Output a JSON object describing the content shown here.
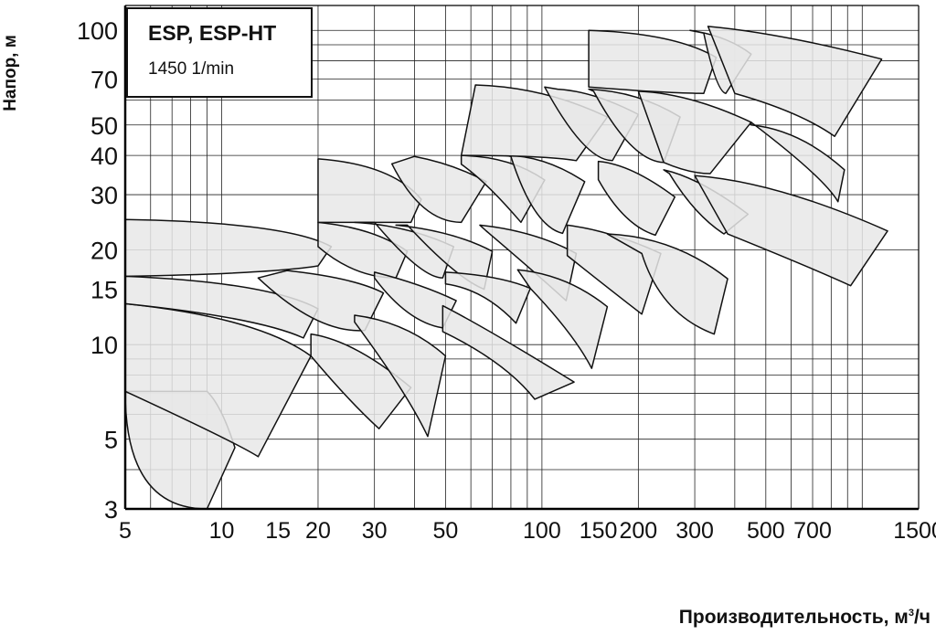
{
  "chart_data": {
    "type": "area",
    "title": "ESP, ESP-HT",
    "subtitle": "1450 1/min",
    "xlabel_text": "Производительность, м",
    "xlabel_sup": "3",
    "xlabel_tail": "/ч",
    "ylabel": "Напор, м",
    "x_scale": "log",
    "y_scale": "log",
    "xlim": [
      5,
      1500
    ],
    "ylim": [
      3,
      120
    ],
    "grid": true,
    "x_ticks": [
      5,
      10,
      15,
      20,
      30,
      50,
      100,
      150,
      200,
      300,
      500,
      700,
      1500
    ],
    "x_tick_labels": [
      "5",
      "10",
      "15",
      "20",
      "30",
      "50",
      "100",
      "150",
      "200",
      "300",
      "500",
      "700",
      "1500"
    ],
    "y_ticks": [
      3,
      5,
      10,
      15,
      20,
      30,
      40,
      50,
      70,
      100
    ],
    "y_tick_labels": [
      "3",
      "5",
      "10",
      "15",
      "20",
      "30",
      "40",
      "50",
      "70",
      "100"
    ],
    "series": [
      {
        "values": [
          [
            9,
            7.1
          ],
          [
            9,
            7.1
          ],
          [
            10,
            6.4
          ],
          [
            11,
            4.7
          ],
          [
            9,
            3.0
          ],
          [
            5,
            3.0
          ],
          [
            5,
            7.1
          ]
        ]
      },
      {
        "values": [
          [
            5,
            13.5
          ],
          [
            5,
            13.5
          ],
          [
            13,
            12.2
          ],
          [
            19,
            9.2
          ],
          [
            13,
            4.4
          ],
          [
            11,
            4.9
          ],
          [
            5,
            7.1
          ]
        ]
      },
      {
        "values": [
          [
            5,
            16.5
          ],
          [
            5,
            16.5
          ],
          [
            14,
            15.8
          ],
          [
            20,
            13.0
          ],
          [
            18,
            10.5
          ],
          [
            13,
            12.2
          ],
          [
            5,
            13.5
          ]
        ]
      },
      {
        "values": [
          [
            5,
            25
          ],
          [
            5,
            25
          ],
          [
            16,
            24.5
          ],
          [
            22,
            20.5
          ],
          [
            20,
            17.8
          ],
          [
            14,
            16.8
          ],
          [
            5,
            16.5
          ]
        ]
      },
      {
        "values": [
          [
            19,
            10.8
          ],
          [
            19,
            10.8
          ],
          [
            26,
            10.3
          ],
          [
            39,
            7.3
          ],
          [
            31,
            5.4
          ],
          [
            25,
            6.6
          ],
          [
            19,
            9.2
          ]
        ]
      },
      {
        "values": [
          [
            16,
            17.2
          ],
          [
            16,
            17.2
          ],
          [
            26,
            16.3
          ],
          [
            32,
            14.6
          ],
          [
            28,
            11.1
          ],
          [
            20,
            10.8
          ],
          [
            13,
            16.3
          ]
        ]
      },
      {
        "values": [
          [
            20,
            24.5
          ],
          [
            20,
            24.5
          ],
          [
            30,
            23.5
          ],
          [
            38,
            19.8
          ],
          [
            35,
            16.3
          ],
          [
            26,
            16.3
          ],
          [
            20,
            20.5
          ]
        ]
      },
      {
        "values": [
          [
            20,
            39
          ],
          [
            20,
            39
          ],
          [
            34,
            37.5
          ],
          [
            42,
            29.0
          ],
          [
            39,
            24.5
          ],
          [
            30,
            24.5
          ],
          [
            20,
            24.5
          ]
        ]
      },
      {
        "values": [
          [
            26,
            12.4
          ],
          [
            26,
            12.4
          ],
          [
            38,
            11.8
          ],
          [
            50,
            9.2
          ],
          [
            44,
            5.1
          ],
          [
            38,
            7.0
          ],
          [
            26,
            11.8
          ]
        ]
      },
      {
        "values": [
          [
            30,
            17.0
          ],
          [
            30,
            17.0
          ],
          [
            42,
            15.6
          ],
          [
            54,
            13.8
          ],
          [
            49,
            11.3
          ],
          [
            38,
            11.8
          ],
          [
            30,
            16.3
          ]
        ]
      },
      {
        "values": [
          [
            26,
            24.5
          ],
          [
            26,
            24.5
          ],
          [
            38,
            24.0
          ],
          [
            53,
            20.5
          ],
          [
            49,
            16.3
          ],
          [
            42,
            16.3
          ],
          [
            30,
            24.5
          ]
        ]
      },
      {
        "values": [
          [
            40,
            39.7
          ],
          [
            40,
            39.7
          ],
          [
            53,
            37.6
          ],
          [
            67,
            33.0
          ],
          [
            56,
            24.5
          ],
          [
            42,
            24.5
          ],
          [
            34,
            37.6
          ]
        ]
      },
      {
        "values": [
          [
            35,
            24.0
          ],
          [
            35,
            24.0
          ],
          [
            53,
            23.0
          ],
          [
            70,
            19.8
          ],
          [
            66,
            15.0
          ],
          [
            54,
            16.3
          ],
          [
            38,
            24.0
          ]
        ]
      },
      {
        "values": [
          [
            49,
            13.3
          ],
          [
            49,
            13.3
          ],
          [
            67,
            11.3
          ],
          [
            126,
            7.6
          ],
          [
            95,
            6.7
          ],
          [
            77,
            8.8
          ],
          [
            49,
            11.0
          ]
        ]
      },
      {
        "values": [
          [
            50,
            17.0
          ],
          [
            50,
            17.0
          ],
          [
            74,
            16.6
          ],
          [
            92,
            15.1
          ],
          [
            83,
            11.7
          ],
          [
            66,
            15.0
          ],
          [
            50,
            15.6
          ]
        ]
      },
      {
        "values": [
          [
            56,
            40
          ],
          [
            56,
            40
          ],
          [
            80,
            39.7
          ],
          [
            102,
            33.4
          ],
          [
            86,
            24.5
          ],
          [
            67,
            33.0
          ],
          [
            56,
            37.5
          ]
        ]
      },
      {
        "values": [
          [
            77,
            40
          ],
          [
            77,
            40
          ],
          [
            102,
            40
          ],
          [
            136,
            33.0
          ],
          [
            116,
            22.6
          ],
          [
            94,
            23.8
          ],
          [
            80,
            39.7
          ]
        ]
      },
      {
        "values": [
          [
            64,
            24.0
          ],
          [
            64,
            24.0
          ],
          [
            95,
            23.0
          ],
          [
            128,
            19.5
          ],
          [
            119,
            13.8
          ],
          [
            95,
            17.0
          ],
          [
            67,
            23.0
          ]
        ]
      },
      {
        "values": [
          [
            84,
            17.3
          ],
          [
            84,
            17.3
          ],
          [
            120,
            16.7
          ],
          [
            160,
            13.2
          ],
          [
            143,
            8.4
          ],
          [
            126,
            10.8
          ],
          [
            92,
            15.1
          ]
        ]
      },
      {
        "values": [
          [
            62,
            67
          ],
          [
            62,
            67
          ],
          [
            102,
            66
          ],
          [
            160,
            53.0
          ],
          [
            128,
            38.5
          ],
          [
            102,
            40
          ],
          [
            56,
            40
          ]
        ]
      },
      {
        "values": [
          [
            112,
            65
          ],
          [
            112,
            65
          ],
          [
            145,
            64
          ],
          [
            200,
            54.0
          ],
          [
            166,
            38.5
          ],
          [
            136,
            38.5
          ],
          [
            102,
            66
          ]
        ]
      },
      {
        "values": [
          [
            120,
            24.0
          ],
          [
            120,
            24.0
          ],
          [
            165,
            23.0
          ],
          [
            235,
            19.5
          ],
          [
            205,
            12.5
          ],
          [
            160,
            15.2
          ],
          [
            120,
            19.2
          ]
        ]
      },
      {
        "values": [
          [
            150,
            38.3
          ],
          [
            150,
            38.3
          ],
          [
            190,
            37.5
          ],
          [
            260,
            29.5
          ],
          [
            226,
            22.3
          ],
          [
            180,
            24.0
          ],
          [
            150,
            33.5
          ]
        ]
      },
      {
        "values": [
          [
            140,
            65
          ],
          [
            140,
            65
          ],
          [
            200,
            64
          ],
          [
            270,
            53.0
          ],
          [
            240,
            38.0
          ],
          [
            190,
            38.3
          ],
          [
            145,
            64
          ]
        ]
      },
      {
        "values": [
          [
            160,
            22.5
          ],
          [
            160,
            22.5
          ],
          [
            260,
            22.0
          ],
          [
            380,
            16.2
          ],
          [
            345,
            10.8
          ],
          [
            235,
            12.5
          ],
          [
            205,
            19.5
          ]
        ]
      },
      {
        "values": [
          [
            240,
            36.0
          ],
          [
            240,
            36.0
          ],
          [
            310,
            34.0
          ],
          [
            440,
            26.0
          ],
          [
            370,
            22.5
          ],
          [
            300,
            25.8
          ],
          [
            250,
            35.0
          ]
        ]
      },
      {
        "values": [
          [
            200,
            64
          ],
          [
            200,
            64
          ],
          [
            290,
            63
          ],
          [
            450,
            51.0
          ],
          [
            335,
            35.0
          ],
          [
            290,
            35.0
          ],
          [
            240,
            38.0
          ]
        ]
      },
      {
        "values": [
          [
            140,
            100
          ],
          [
            140,
            100
          ],
          [
            260,
            98
          ],
          [
            350,
            82
          ],
          [
            320,
            63
          ],
          [
            250,
            63
          ],
          [
            140,
            66
          ]
        ]
      },
      {
        "values": [
          [
            290,
            100
          ],
          [
            290,
            100
          ],
          [
            380,
            96
          ],
          [
            450,
            84
          ],
          [
            375,
            63
          ],
          [
            350,
            64
          ],
          [
            320,
            98
          ]
        ]
      },
      {
        "values": [
          [
            330,
            103
          ],
          [
            330,
            103
          ],
          [
            560,
            98
          ],
          [
            1150,
            81
          ],
          [
            820,
            46
          ],
          [
            640,
            55
          ],
          [
            400,
            63
          ]
        ]
      },
      {
        "values": [
          [
            300,
            34.5
          ],
          [
            300,
            34.5
          ],
          [
            540,
            33.0
          ],
          [
            1200,
            23.0
          ],
          [
            920,
            15.4
          ],
          [
            700,
            17.5
          ],
          [
            380,
            22.5
          ]
        ]
      },
      {
        "values": [
          [
            450,
            50
          ],
          [
            450,
            50
          ],
          [
            640,
            48.2
          ],
          [
            880,
            36.0
          ],
          [
            840,
            28.5
          ],
          [
            760,
            34.0
          ],
          [
            450,
            51.0
          ]
        ]
      }
    ]
  }
}
